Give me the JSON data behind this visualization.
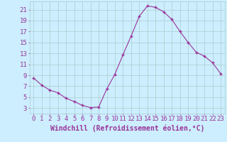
{
  "x": [
    0,
    1,
    2,
    3,
    4,
    5,
    6,
    7,
    8,
    9,
    10,
    11,
    12,
    13,
    14,
    15,
    16,
    17,
    18,
    19,
    20,
    21,
    22,
    23
  ],
  "y": [
    8.5,
    7.2,
    6.3,
    5.8,
    4.8,
    4.2,
    3.5,
    3.1,
    3.2,
    6.5,
    9.2,
    12.8,
    16.2,
    19.8,
    21.7,
    21.4,
    20.6,
    19.2,
    17.0,
    15.0,
    13.2,
    12.5,
    11.3,
    9.3
  ],
  "line_color": "#993399",
  "marker": "+",
  "bg_color": "#cceeff",
  "grid_color": "#aacccc",
  "tick_color": "#993399",
  "label_color": "#993399",
  "xlabel": "Windchill (Refroidissement éolien,°C)",
  "ylabel_ticks": [
    3,
    5,
    7,
    9,
    11,
    13,
    15,
    17,
    19,
    21
  ],
  "xlim": [
    -0.5,
    23.5
  ],
  "ylim": [
    2.0,
    22.5
  ],
  "font_size": 6.5
}
